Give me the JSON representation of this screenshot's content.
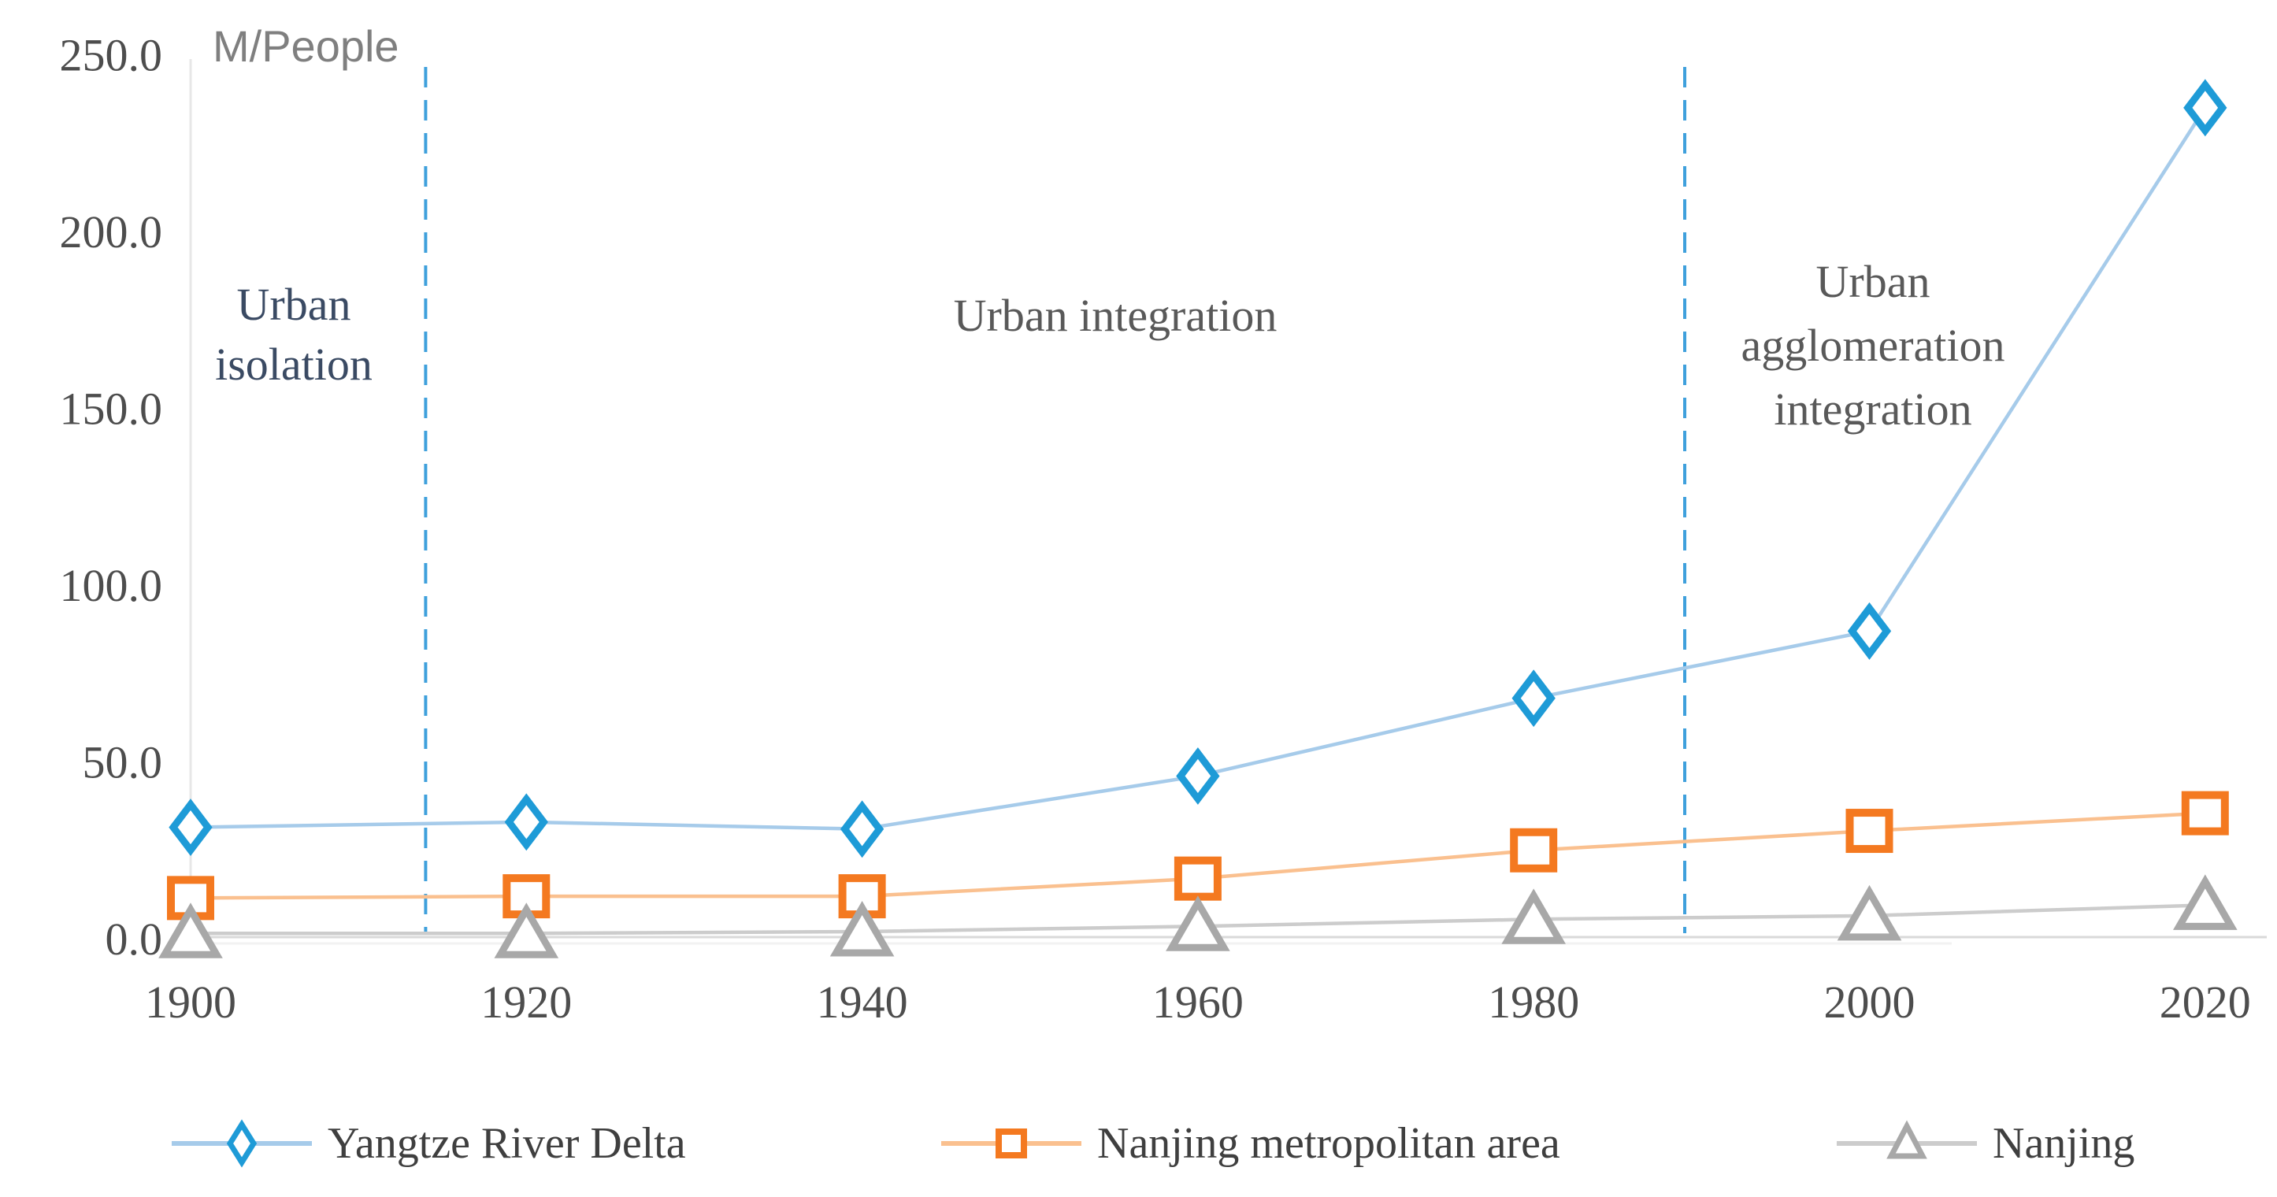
{
  "chart_data": {
    "type": "line",
    "title": "",
    "unit_label": "M/People",
    "xlabel": "",
    "ylabel": "M/People",
    "categories": [
      1900,
      1920,
      1940,
      1960,
      1980,
      2000,
      2020
    ],
    "series": [
      {
        "name": "Yangtze River Delta",
        "marker": "diamond",
        "marker_color": "#1e9bd7",
        "line_color": "#a6cbea",
        "values": [
          31.5,
          33,
          31,
          46,
          68,
          87,
          235
        ]
      },
      {
        "name": "Nanjing metropolitan area",
        "marker": "square",
        "marker_color": "#f47920",
        "line_color": "#fac08f",
        "values": [
          11.5,
          12,
          12,
          17,
          25,
          30.5,
          35.5
        ]
      },
      {
        "name": "Nanjing",
        "marker": "triangle",
        "marker_color": "#a8a8a8",
        "line_color": "#cccccc",
        "values": [
          1.5,
          1.5,
          2,
          3.5,
          5.5,
          6.5,
          9.5
        ]
      }
    ],
    "ylim": [
      0,
      250
    ],
    "yticks": [
      0,
      50,
      100,
      150,
      200,
      250
    ],
    "ytick_labels": [
      "0.0",
      "50.0",
      "100.0",
      "150.0",
      "200.0",
      "250.0"
    ],
    "grid": false,
    "legend_position": "bottom",
    "axis_color": "#d9d9d9",
    "tick_text_color": "#4d4d4d",
    "divider_color": "#3fa0dc",
    "dividers": [
      {
        "year": 1914
      },
      {
        "year": 1989
      }
    ],
    "annotations": [
      {
        "text": "Urban isolation",
        "lines": [
          "Urban",
          "isolation"
        ],
        "color": "#3a4a63"
      },
      {
        "text": "Urban integration",
        "lines": [
          "Urban integration"
        ],
        "color": "#595959"
      },
      {
        "text": "Urban agglomeration integration",
        "lines": [
          "Urban",
          "agglomeration",
          "integration"
        ],
        "color": "#595959"
      }
    ]
  },
  "legend": {
    "items": [
      {
        "label": "Yangtze River Delta"
      },
      {
        "label": "Nanjing metropolitan area"
      },
      {
        "label": "Nanjing"
      }
    ]
  }
}
